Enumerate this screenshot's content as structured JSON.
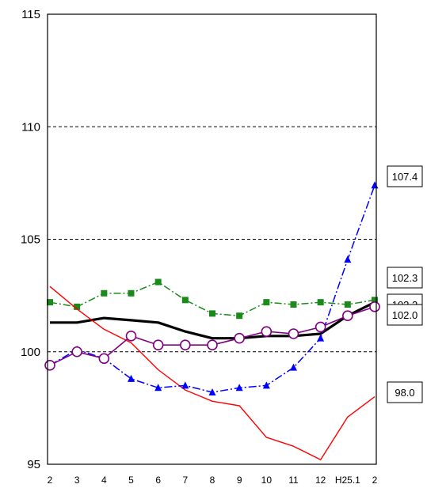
{
  "chart_data": {
    "type": "line",
    "title": "",
    "xlabel": "",
    "ylabel": "",
    "categories": [
      "2",
      "3",
      "4",
      "5",
      "6",
      "7",
      "8",
      "9",
      "10",
      "11",
      "12",
      "H25.1",
      "2"
    ],
    "y_ticks": [
      "95",
      "100",
      "105",
      "110",
      "115"
    ],
    "ylim": [
      95,
      115
    ],
    "grid": "horizontal dashed",
    "series": [
      {
        "style": "black-thick",
        "color": "#000000",
        "values": [
          101.3,
          101.3,
          101.5,
          101.4,
          101.3,
          100.9,
          100.6,
          100.6,
          100.7,
          100.7,
          100.8,
          101.6,
          102.2
        ]
      },
      {
        "style": "green-dashdot-square",
        "color": "#1a8a1a",
        "values": [
          102.2,
          102.0,
          102.6,
          102.6,
          103.1,
          102.3,
          101.7,
          101.6,
          102.2,
          102.1,
          102.2,
          102.1,
          102.3
        ]
      },
      {
        "style": "red-line",
        "color": "#ff0000",
        "values": [
          102.9,
          101.9,
          101.0,
          100.4,
          99.2,
          98.3,
          97.8,
          97.6,
          96.2,
          95.8,
          95.2,
          97.1,
          98.0
        ]
      },
      {
        "style": "blue-dashdot-triangle",
        "color": "#0000ff",
        "values": [
          99.4,
          100.1,
          99.7,
          98.8,
          98.4,
          98.5,
          98.2,
          98.4,
          98.5,
          99.3,
          100.6,
          104.1,
          107.4
        ]
      },
      {
        "style": "purple-circle",
        "color": "#800080",
        "values": [
          99.4,
          100.0,
          99.7,
          100.7,
          100.3,
          100.3,
          100.3,
          100.6,
          100.9,
          100.8,
          101.1,
          101.6,
          102.0
        ]
      }
    ],
    "end_labels": [
      "107.4",
      "102.3",
      "102.2",
      "102.0",
      "98.0"
    ]
  }
}
